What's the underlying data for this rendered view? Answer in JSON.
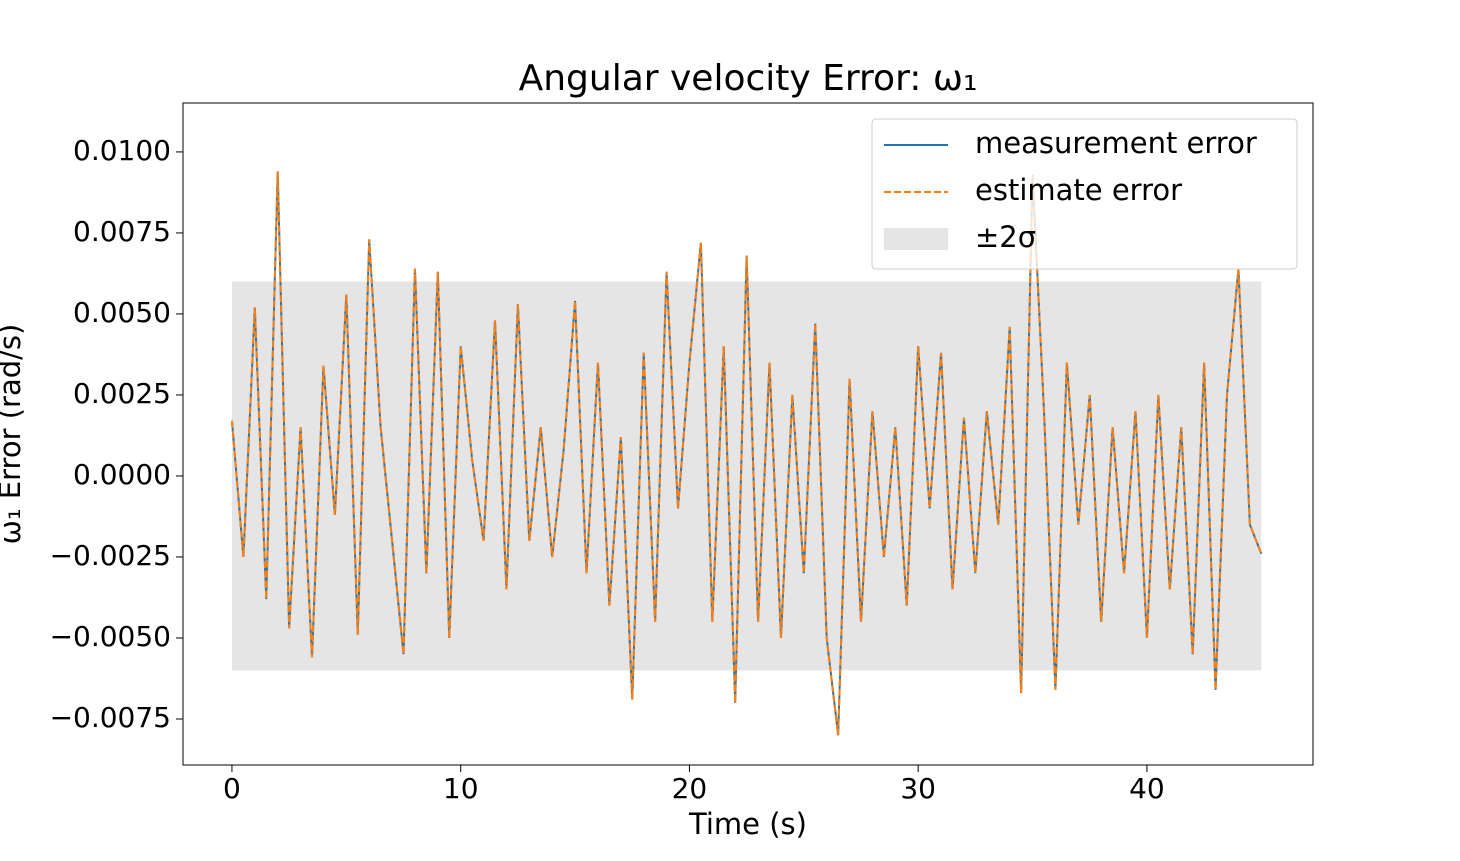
{
  "chart_data": {
    "type": "line",
    "title": "Angular velocity Error: ω₁",
    "xlabel": "Time (s)",
    "ylabel": "ω₁ Error (rad/s)",
    "x": [
      0,
      0.5,
      1,
      1.5,
      2,
      2.5,
      3,
      3.5,
      4,
      4.5,
      5,
      5.5,
      6,
      6.5,
      7,
      7.5,
      8,
      8.5,
      9,
      9.5,
      10,
      10.5,
      11,
      11.5,
      12,
      12.5,
      13,
      13.5,
      14,
      14.5,
      15,
      15.5,
      16,
      16.5,
      17,
      17.5,
      18,
      18.5,
      19,
      19.5,
      20,
      20.5,
      21,
      21.5,
      22,
      22.5,
      23,
      23.5,
      24,
      24.5,
      25,
      25.5,
      26,
      26.5,
      27,
      27.5,
      28,
      28.5,
      29,
      29.5,
      30,
      30.5,
      31,
      31.5,
      32,
      32.5,
      33,
      33.5,
      34,
      34.5,
      35,
      35.5,
      36,
      36.5,
      37,
      37.5,
      38,
      38.5,
      39,
      39.5,
      40,
      40.5,
      41,
      41.5,
      42,
      42.5,
      43,
      43.5,
      44,
      44.5,
      45
    ],
    "series": [
      {
        "name": "measurement error",
        "color": "#1f77b4",
        "dashed": false,
        "values": [
          0.0017,
          -0.0025,
          0.0052,
          -0.0038,
          0.0094,
          -0.0047,
          0.0015,
          -0.0056,
          0.0034,
          -0.0012,
          0.0056,
          -0.0049,
          0.0073,
          0.0015,
          -0.002,
          -0.0055,
          0.0064,
          -0.003,
          0.0063,
          -0.005,
          0.004,
          0.0005,
          -0.002,
          0.0048,
          -0.0035,
          0.0053,
          -0.002,
          0.0015,
          -0.0025,
          0.0008,
          0.0054,
          -0.003,
          0.0035,
          -0.004,
          0.0012,
          -0.0069,
          0.0038,
          -0.0045,
          0.0063,
          -0.001,
          0.0035,
          0.0072,
          -0.0045,
          0.004,
          -0.007,
          0.0068,
          -0.0045,
          0.0035,
          -0.005,
          0.0025,
          -0.003,
          0.0047,
          -0.005,
          -0.008,
          0.003,
          -0.0045,
          0.002,
          -0.0025,
          0.0015,
          -0.004,
          0.004,
          -0.001,
          0.0038,
          -0.0035,
          0.0018,
          -0.003,
          0.002,
          -0.0015,
          0.0046,
          -0.0067,
          0.0093,
          0.002,
          -0.0066,
          0.0035,
          -0.0015,
          0.0025,
          -0.0045,
          0.0015,
          -0.003,
          0.002,
          -0.005,
          0.0025,
          -0.0035,
          0.0015,
          -0.0055,
          0.0035,
          -0.0066,
          0.0025,
          0.0064,
          -0.0015,
          -0.0024
        ]
      },
      {
        "name": "estimate error",
        "color": "#ff7f0e",
        "dashed": true,
        "values": [
          0.0017,
          -0.0025,
          0.0052,
          -0.0038,
          0.0094,
          -0.0047,
          0.0015,
          -0.0056,
          0.0034,
          -0.0012,
          0.0056,
          -0.0049,
          0.0073,
          0.0015,
          -0.002,
          -0.0055,
          0.0064,
          -0.003,
          0.0063,
          -0.005,
          0.004,
          0.0005,
          -0.002,
          0.0048,
          -0.0035,
          0.0053,
          -0.002,
          0.0015,
          -0.0025,
          0.0008,
          0.0054,
          -0.003,
          0.0035,
          -0.004,
          0.0012,
          -0.0069,
          0.0038,
          -0.0045,
          0.0063,
          -0.001,
          0.0035,
          0.0072,
          -0.0045,
          0.004,
          -0.007,
          0.0068,
          -0.0045,
          0.0035,
          -0.005,
          0.0025,
          -0.003,
          0.0047,
          -0.005,
          -0.008,
          0.003,
          -0.0045,
          0.002,
          -0.0025,
          0.0015,
          -0.004,
          0.004,
          -0.001,
          0.0038,
          -0.0035,
          0.0018,
          -0.003,
          0.002,
          -0.0015,
          0.0046,
          -0.0067,
          0.0093,
          0.002,
          -0.0066,
          0.0035,
          -0.0015,
          0.0025,
          -0.0045,
          0.0015,
          -0.003,
          0.002,
          -0.005,
          0.0025,
          -0.0035,
          0.0015,
          -0.0055,
          0.0035,
          -0.0066,
          0.0025,
          0.0064,
          -0.0015,
          -0.0024
        ]
      }
    ],
    "band": {
      "name": "±2σ",
      "color": "#e5e5e5",
      "x": [
        0,
        45
      ],
      "lower": [
        -0.006,
        -0.006
      ],
      "upper": [
        0.006,
        0.006
      ]
    },
    "xlim": [
      -2.14,
      47.26
    ],
    "ylim": [
      -0.00892,
      0.01151
    ],
    "xticks": [
      0,
      10,
      20,
      30,
      40
    ],
    "yticks": [
      {
        "value": -0.0075,
        "label": "−0.0075"
      },
      {
        "value": -0.005,
        "label": "−0.0050"
      },
      {
        "value": -0.0025,
        "label": "−0.0025"
      },
      {
        "value": 0,
        "label": "0.0000"
      },
      {
        "value": 0.0025,
        "label": "0.0025"
      },
      {
        "value": 0.005,
        "label": "0.0050"
      },
      {
        "value": 0.0075,
        "label": "0.0075"
      },
      {
        "value": 0.01,
        "label": "0.0100"
      }
    ],
    "grid": false,
    "legend": "upper right"
  }
}
